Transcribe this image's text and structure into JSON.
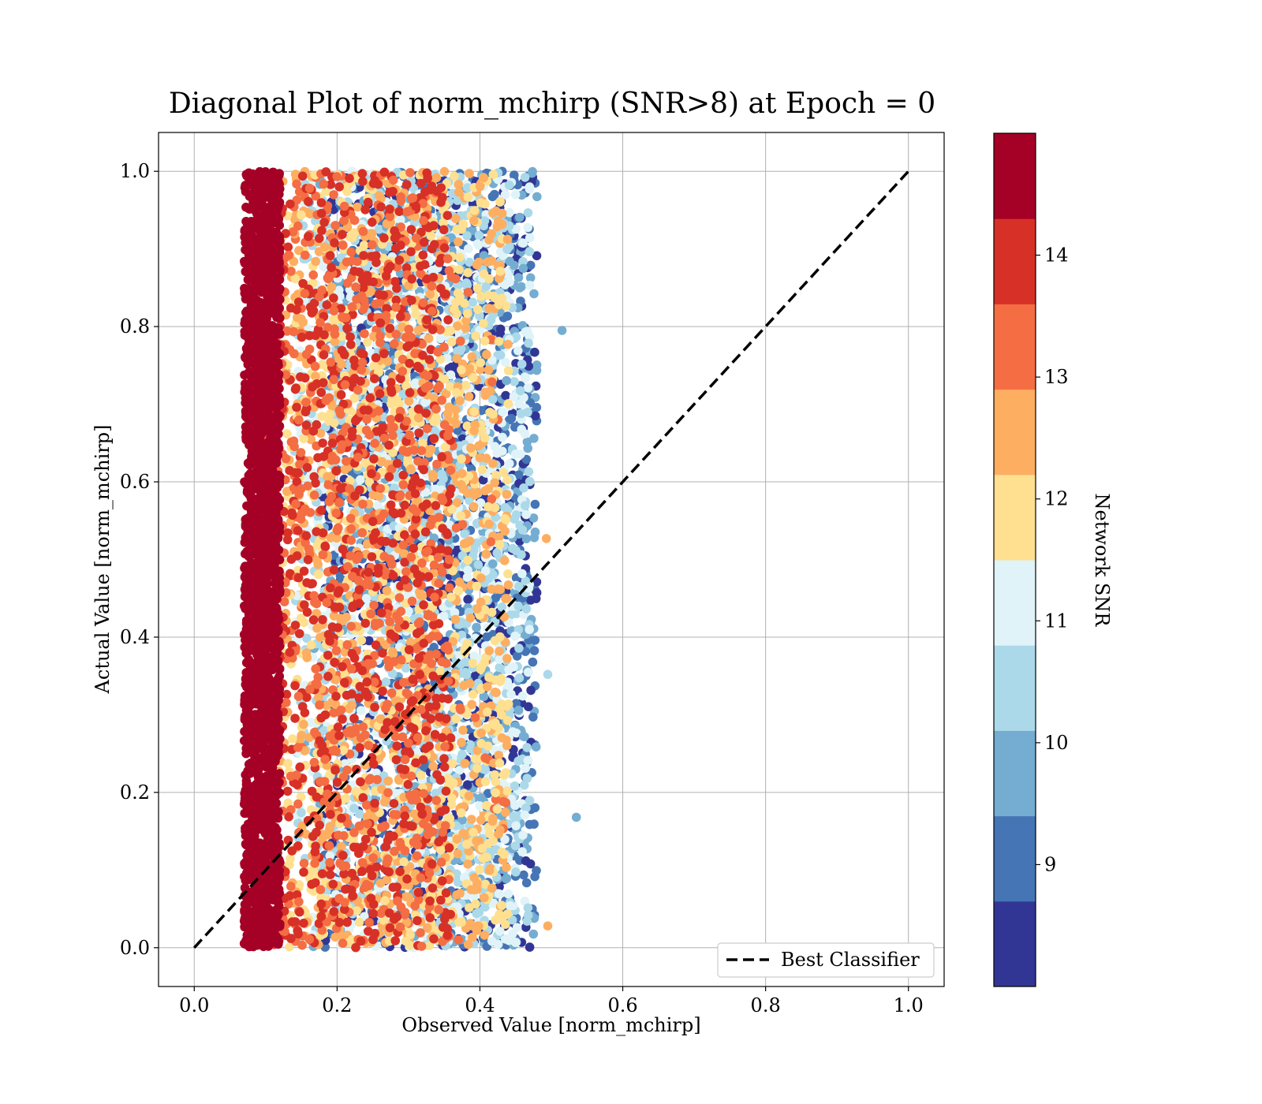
{
  "chart_data": {
    "type": "scatter",
    "title": "Diagonal Plot of norm_mchirp (SNR>8) at Epoch = 0",
    "xlabel": "Observed Value [norm_mchirp]",
    "ylabel": "Actual Value [norm_mchirp]",
    "xlim": [
      -0.05,
      1.05
    ],
    "ylim": [
      -0.05,
      1.05
    ],
    "xticks": [
      0.0,
      0.2,
      0.4,
      0.6,
      0.8,
      1.0
    ],
    "yticks": [
      0.0,
      0.2,
      0.4,
      0.6,
      0.8,
      1.0
    ],
    "xtick_labels": [
      "0.0",
      "0.2",
      "0.4",
      "0.6",
      "0.8",
      "1.0"
    ],
    "ytick_labels": [
      "0.0",
      "0.2",
      "0.4",
      "0.6",
      "0.8",
      "1.0"
    ],
    "grid": true,
    "legend": {
      "position": "lower-right",
      "entries": [
        "Best Classifier"
      ]
    },
    "reference_line": {
      "name": "Best Classifier",
      "x": [
        0.0,
        1.0
      ],
      "y": [
        0.0,
        1.0
      ],
      "style": "dashed",
      "color": "#000000"
    },
    "colorbar": {
      "label": "Network SNR",
      "range": [
        8,
        15
      ],
      "ticks": [
        9,
        10,
        11,
        12,
        13,
        14
      ],
      "tick_labels": [
        "9",
        "10",
        "11",
        "12",
        "13",
        "14"
      ],
      "colors": [
        "#313695",
        "#4575b4",
        "#74add1",
        "#abd9e9",
        "#e0f3f8",
        "#fee090",
        "#fdae61",
        "#f46d43",
        "#d73027",
        "#a50026"
      ]
    },
    "point_distribution": {
      "snr_groups": [
        {
          "snr_range": [
            8.0,
            10.0
          ],
          "x_range": [
            0.18,
            0.48
          ]
        },
        {
          "snr_range": [
            10.0,
            11.5
          ],
          "x_range": [
            0.14,
            0.47
          ]
        },
        {
          "snr_range": [
            11.5,
            13.0
          ],
          "x_range": [
            0.11,
            0.44
          ]
        },
        {
          "snr_range": [
            13.0,
            14.3
          ],
          "x_range": [
            0.09,
            0.36
          ]
        },
        {
          "snr_range": [
            14.3,
            15.0
          ],
          "x_range": [
            0.07,
            0.12
          ]
        }
      ],
      "y_range": [
        0.0,
        1.0
      ],
      "outliers": [
        {
          "x": 0.515,
          "y": 0.795,
          "snr": 10.0
        },
        {
          "x": 0.535,
          "y": 0.168,
          "snr": 9.5
        },
        {
          "x": 0.495,
          "y": 0.352,
          "snr": 10.5
        },
        {
          "x": 0.493,
          "y": 0.527,
          "snr": 12.5
        },
        {
          "x": 0.495,
          "y": 0.028,
          "snr": 12.5
        }
      ]
    }
  }
}
